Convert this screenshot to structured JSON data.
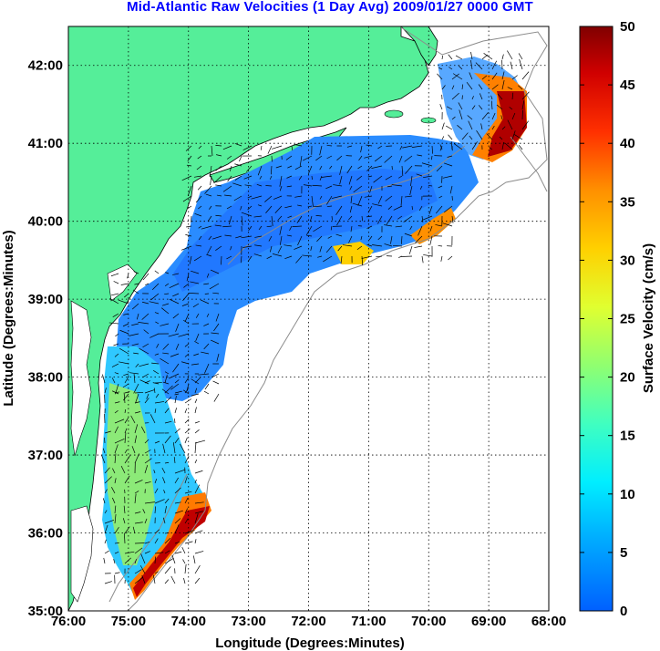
{
  "title": "Mid-Atlantic Raw Velocities (1 Day Avg) 2009/01/27 0000 GMT",
  "chart_data": {
    "type": "heatmap",
    "title": "Mid-Atlantic Raw Velocities (1 Day Avg) 2009/01/27 0000 GMT",
    "xlabel": "Longitude (Degrees:Minutes)",
    "ylabel": "Latitude (Degrees:Minutes)",
    "x_ticks": [
      "76:00",
      "75:00",
      "74:00",
      "73:00",
      "72:00",
      "71:00",
      "70:00",
      "69:00",
      "68:00"
    ],
    "y_ticks": [
      "35:00",
      "36:00",
      "37:00",
      "38:00",
      "39:00",
      "40:00",
      "41:00",
      "42:00"
    ],
    "xlim": [
      -76,
      -68
    ],
    "ylim": [
      35,
      42.5
    ],
    "grid": true,
    "colorbar": {
      "label": "Surface Velocity (cm/s)",
      "range": [
        0,
        50
      ],
      "ticks": [
        "0",
        "5",
        "10",
        "15",
        "20",
        "25",
        "30",
        "35",
        "40",
        "45",
        "50"
      ],
      "colormap": "jet"
    }
  },
  "colors": {
    "land": "#55ee99",
    "title": "#0000ff",
    "ocean": "#ffffff",
    "bathymetry": "#8c8c8c"
  }
}
